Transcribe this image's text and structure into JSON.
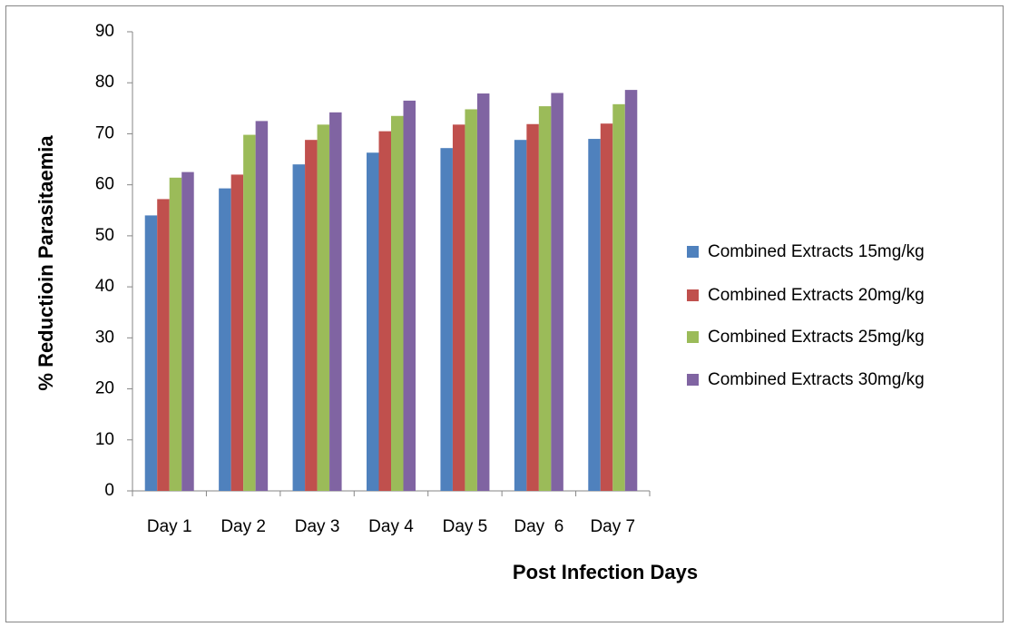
{
  "chart_data": {
    "type": "bar",
    "y_label": "% Reductioin Parasitaemia",
    "x_label": "Post Infection Days",
    "categories": [
      "Day 1",
      "Day 2",
      "Day 3",
      "Day 4",
      "Day 5",
      "Day  6",
      "Day 7"
    ],
    "series": [
      {
        "name": "Combined Extracts 15mg/kg",
        "color": "#4f81bd",
        "values": [
          54,
          59.3,
          64,
          66.3,
          67.2,
          68.8,
          69
        ]
      },
      {
        "name": "Combined Extracts 20mg/kg",
        "color": "#c0504d",
        "values": [
          57.2,
          62,
          68.8,
          70.5,
          71.8,
          71.9,
          72
        ]
      },
      {
        "name": "Combined Extracts 25mg/kg",
        "color": "#9bbb59",
        "values": [
          61.4,
          69.8,
          71.8,
          73.5,
          74.8,
          75.4,
          75.8
        ]
      },
      {
        "name": "Combined Extracts 30mg/kg",
        "color": "#8064a2",
        "values": [
          62.5,
          72.5,
          74.2,
          76.5,
          77.9,
          78,
          78.6
        ]
      }
    ],
    "ylim": [
      0,
      90
    ],
    "yticks": [
      0,
      10,
      20,
      30,
      40,
      50,
      60,
      70,
      80,
      90
    ],
    "grid": false,
    "legend": "right"
  }
}
